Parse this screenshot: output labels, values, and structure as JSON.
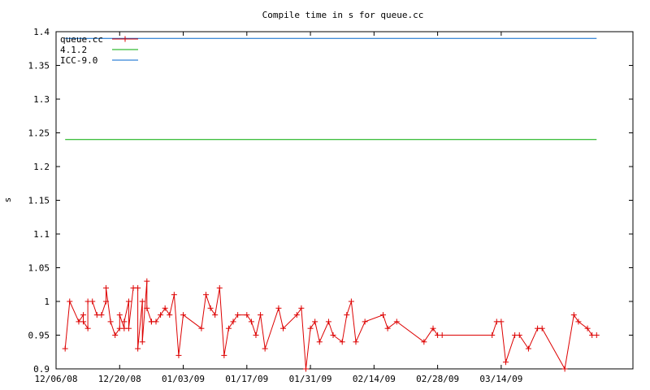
{
  "chart_data": {
    "type": "line",
    "title": "Compile time in s for queue.cc",
    "ylabel": "s",
    "xlabel": "",
    "ylim": [
      0.9,
      1.4
    ],
    "xlim": [
      "2008-12-06",
      "2009-04-12"
    ],
    "legend_position": "top-left",
    "grid": false,
    "y_ticks": [
      {
        "value": 0.9,
        "label": "0.9"
      },
      {
        "value": 0.95,
        "label": "0.95"
      },
      {
        "value": 1.0,
        "label": "1"
      },
      {
        "value": 1.05,
        "label": "1.05"
      },
      {
        "value": 1.1,
        "label": "1.1"
      },
      {
        "value": 1.15,
        "label": "1.15"
      },
      {
        "value": 1.2,
        "label": "1.2"
      },
      {
        "value": 1.25,
        "label": "1.25"
      },
      {
        "value": 1.3,
        "label": "1.3"
      },
      {
        "value": 1.35,
        "label": "1.35"
      },
      {
        "value": 1.4,
        "label": "1.4"
      }
    ],
    "x_ticks": [
      {
        "date": "2008-12-06",
        "label": "12/06/08"
      },
      {
        "date": "2008-12-20",
        "label": "12/20/08"
      },
      {
        "date": "2009-01-03",
        "label": "01/03/09"
      },
      {
        "date": "2009-01-17",
        "label": "01/17/09"
      },
      {
        "date": "2009-01-31",
        "label": "01/31/09"
      },
      {
        "date": "2009-02-14",
        "label": "02/14/09"
      },
      {
        "date": "2009-02-28",
        "label": "02/28/09"
      },
      {
        "date": "2009-03-14",
        "label": "03/14/09"
      }
    ],
    "series": [
      {
        "name": "queue.cc",
        "color": "#dd0000",
        "marker": "plus",
        "x": [
          "2008-12-08",
          "2008-12-09",
          "2008-12-11",
          "2008-12-12",
          "2008-12-12",
          "2008-12-13",
          "2008-12-13",
          "2008-12-14",
          "2008-12-15",
          "2008-12-16",
          "2008-12-17",
          "2008-12-17",
          "2008-12-18",
          "2008-12-19",
          "2008-12-20",
          "2008-12-20",
          "2008-12-21",
          "2008-12-21",
          "2008-12-22",
          "2008-12-22",
          "2008-12-23",
          "2008-12-24",
          "2008-12-24",
          "2008-12-25",
          "2008-12-25",
          "2008-12-26",
          "2008-12-26",
          "2008-12-27",
          "2008-12-27",
          "2008-12-28",
          "2008-12-29",
          "2008-12-30",
          "2008-12-31",
          "2009-01-01",
          "2009-01-02",
          "2009-01-03",
          "2009-01-07",
          "2009-01-08",
          "2009-01-09",
          "2009-01-10",
          "2009-01-11",
          "2009-01-12",
          "2009-01-13",
          "2009-01-14",
          "2009-01-15",
          "2009-01-17",
          "2009-01-18",
          "2009-01-19",
          "2009-01-20",
          "2009-01-21",
          "2009-01-24",
          "2009-01-25",
          "2009-01-28",
          "2009-01-29",
          "2009-01-30",
          "2009-01-31",
          "2009-02-01",
          "2009-02-02",
          "2009-02-04",
          "2009-02-05",
          "2009-02-07",
          "2009-02-08",
          "2009-02-09",
          "2009-02-10",
          "2009-02-12",
          "2009-02-16",
          "2009-02-17",
          "2009-02-19",
          "2009-02-25",
          "2009-02-27",
          "2009-02-28",
          "2009-03-01",
          "2009-03-12",
          "2009-03-13",
          "2009-03-14",
          "2009-03-15",
          "2009-03-17",
          "2009-03-18",
          "2009-03-20",
          "2009-03-22",
          "2009-03-23",
          "2009-03-28",
          "2009-03-30",
          "2009-03-31",
          "2009-04-02",
          "2009-04-03",
          "2009-04-04"
        ],
        "y": [
          0.93,
          1.0,
          0.97,
          0.98,
          0.97,
          0.96,
          1.0,
          1.0,
          0.98,
          0.98,
          1.0,
          1.02,
          0.97,
          0.95,
          0.96,
          0.98,
          0.96,
          0.97,
          1.0,
          0.96,
          1.02,
          1.02,
          0.93,
          1.0,
          0.94,
          1.03,
          0.99,
          0.97,
          0.97,
          0.97,
          0.98,
          0.99,
          0.98,
          1.01,
          0.92,
          0.98,
          0.96,
          1.01,
          0.99,
          0.98,
          1.02,
          0.92,
          0.96,
          0.97,
          0.98,
          0.98,
          0.97,
          0.95,
          0.98,
          0.93,
          0.99,
          0.96,
          0.98,
          0.99,
          0.9,
          0.96,
          0.97,
          0.94,
          0.97,
          0.95,
          0.94,
          0.98,
          1.0,
          0.94,
          0.97,
          0.98,
          0.96,
          0.97,
          0.94,
          0.96,
          0.95,
          0.95,
          0.95,
          0.97,
          0.97,
          0.91,
          0.95,
          0.95,
          0.93,
          0.96,
          0.96,
          0.9,
          0.98,
          0.97,
          0.96,
          0.95,
          0.95
        ]
      },
      {
        "name": "4.1.2",
        "color": "#00aa00",
        "marker": "none",
        "x": [
          "2008-12-08",
          "2009-04-04"
        ],
        "y": [
          1.24,
          1.24
        ]
      },
      {
        "name": "ICC-9.0",
        "color": "#0066cc",
        "marker": "none",
        "x": [
          "2008-12-08",
          "2009-04-04"
        ],
        "y": [
          1.39,
          1.39
        ]
      }
    ]
  }
}
